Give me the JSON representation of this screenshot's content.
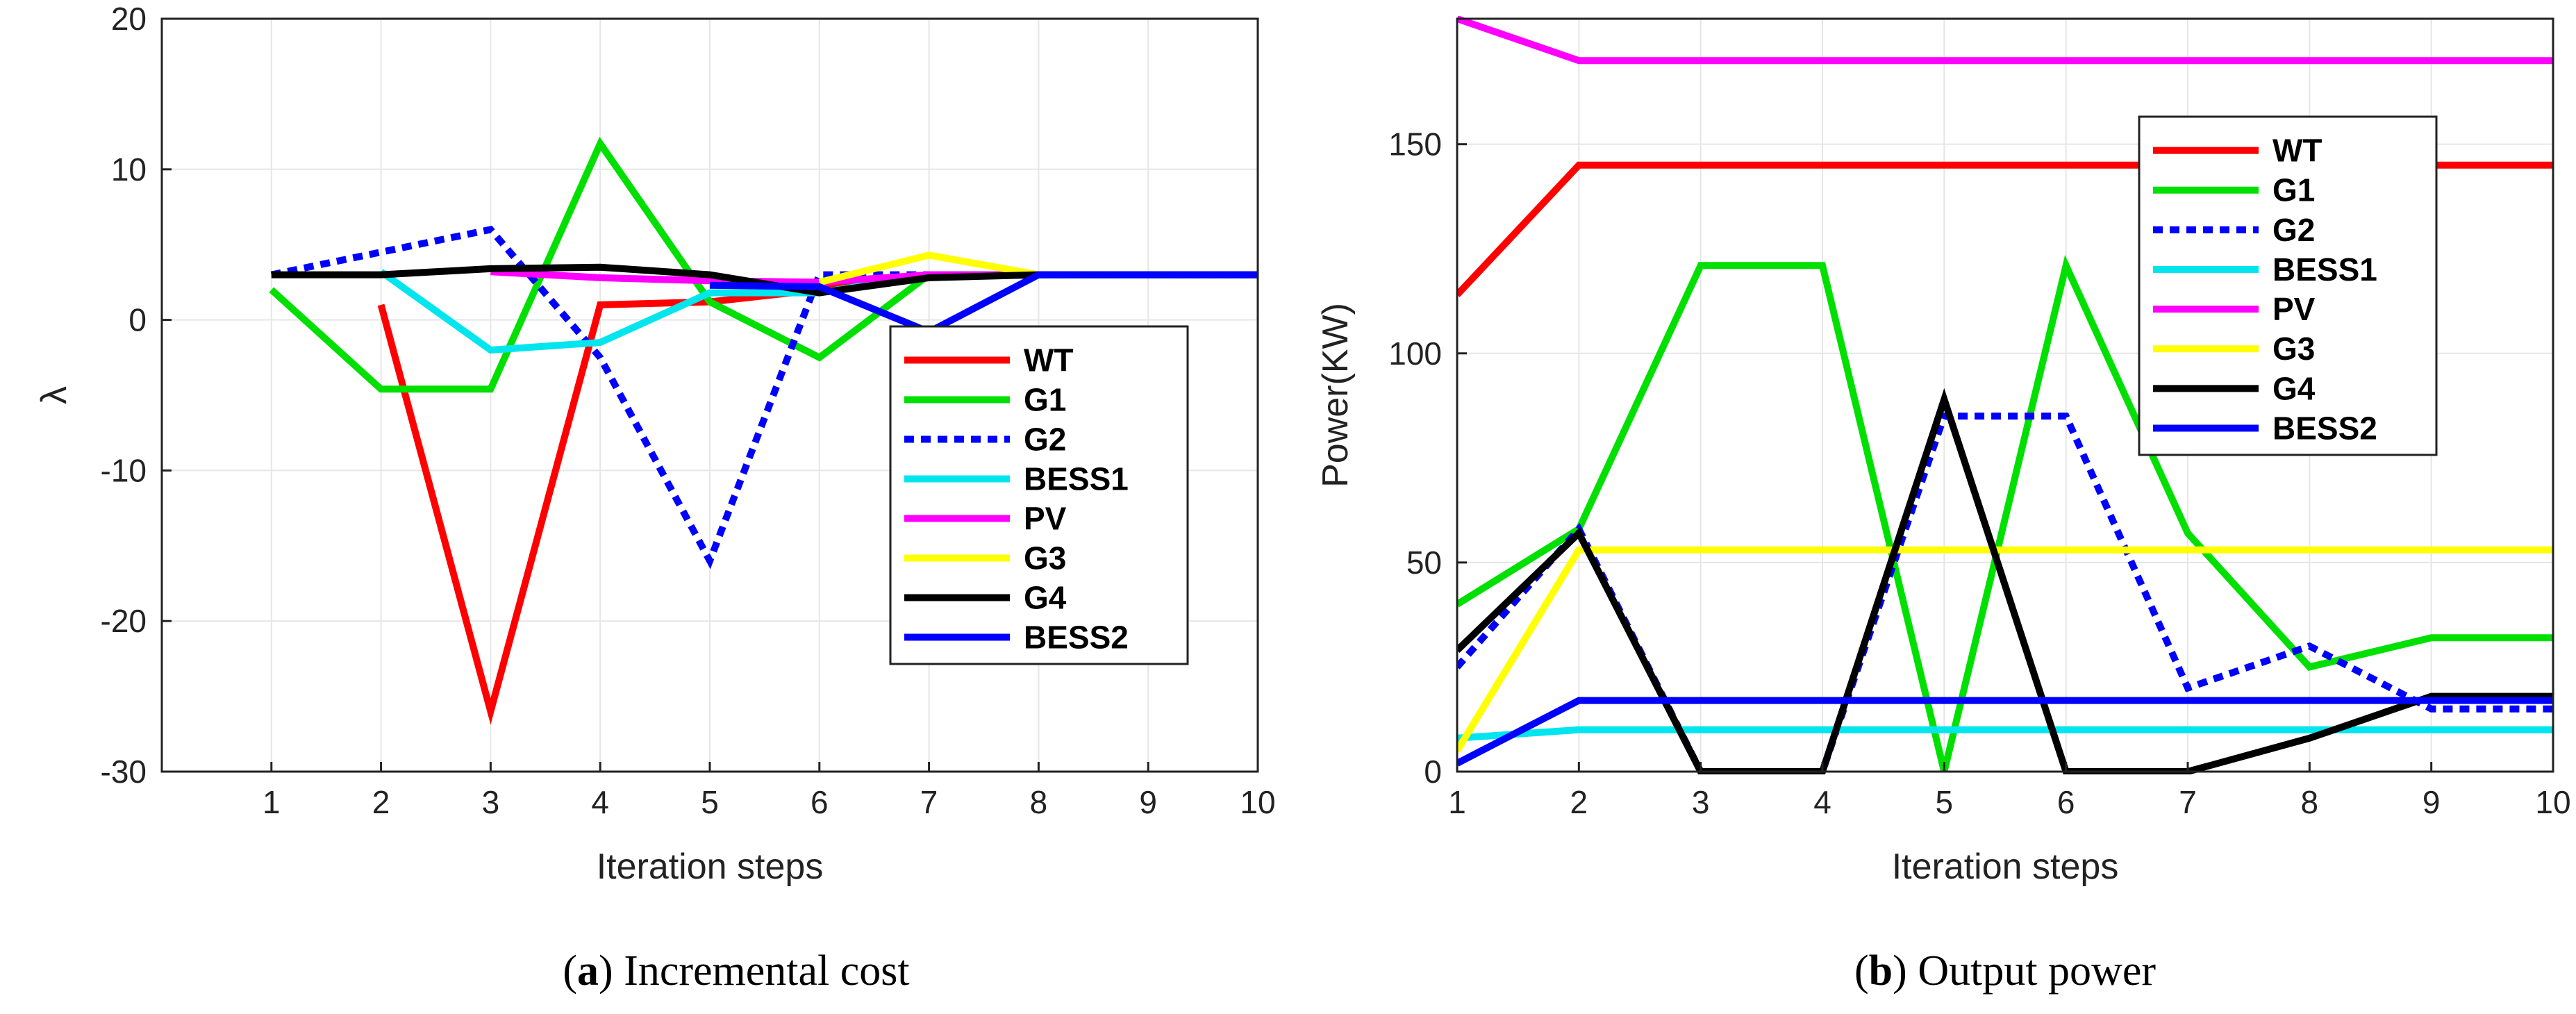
{
  "chart_data": [
    {
      "type": "line",
      "panel": "a",
      "caption_letter": "a",
      "caption_open": "(",
      "caption_close": ")",
      "caption_text": " Incremental cost",
      "xlabel": "Iteration steps",
      "ylabel": "λ",
      "xlim": [
        0,
        10
      ],
      "ylim": [
        -30,
        20
      ],
      "xticks": [
        1,
        2,
        3,
        4,
        5,
        6,
        7,
        8,
        9,
        10
      ],
      "yticks": [
        -30,
        -20,
        -10,
        0,
        10,
        20
      ],
      "legend": [
        "WT",
        "G1",
        "G2",
        "BESS1",
        "PV",
        "G3",
        "G4",
        "BESS2"
      ],
      "legend_position": "right",
      "series": [
        {
          "name": "WT",
          "color": "#ff0000",
          "dash": "solid",
          "x": [
            2,
            3,
            4,
            5,
            6,
            7,
            8,
            9,
            10
          ],
          "values": [
            1,
            -26,
            1,
            1.2,
            2,
            3,
            3,
            3,
            3
          ]
        },
        {
          "name": "G1",
          "color": "#00e000",
          "dash": "solid",
          "x": [
            1,
            2,
            3,
            4,
            5,
            6,
            7,
            8,
            9,
            10
          ],
          "values": [
            2,
            -4.6,
            -4.6,
            11.7,
            1.2,
            -2.5,
            3,
            3,
            3,
            3
          ]
        },
        {
          "name": "G2",
          "color": "#0000ff",
          "dash": "dotted",
          "x": [
            1,
            2,
            3,
            4,
            5,
            6,
            7,
            8,
            9,
            10
          ],
          "values": [
            3,
            4.5,
            6,
            -2.5,
            -16,
            3,
            3,
            3,
            3,
            3
          ]
        },
        {
          "name": "BESS1",
          "color": "#00e5ee",
          "dash": "solid",
          "x": [
            2,
            3,
            4,
            5,
            6,
            7,
            8,
            9,
            10
          ],
          "values": [
            3.2,
            -2,
            -1.5,
            1.8,
            1.8,
            3,
            3,
            3,
            3
          ]
        },
        {
          "name": "PV",
          "color": "#ff00ff",
          "dash": "solid",
          "x": [
            3,
            4,
            5,
            6,
            7,
            8,
            9,
            10
          ],
          "values": [
            3.2,
            2.8,
            2.6,
            2.5,
            3,
            3,
            3,
            3
          ]
        },
        {
          "name": "G3",
          "color": "#ffff00",
          "dash": "solid",
          "x": [
            6,
            7,
            8,
            9,
            10
          ],
          "values": [
            2.5,
            4.3,
            3,
            3,
            3
          ]
        },
        {
          "name": "G4",
          "color": "#000000",
          "dash": "solid",
          "x": [
            1,
            2,
            3,
            4,
            5,
            6,
            7,
            8,
            9,
            10
          ],
          "values": [
            3,
            3,
            3.4,
            3.5,
            3,
            1.8,
            2.8,
            3,
            3,
            3
          ]
        },
        {
          "name": "BESS2",
          "color": "#0000ff",
          "dash": "solid",
          "x": [
            5,
            6,
            7,
            8,
            9,
            10
          ],
          "values": [
            2.3,
            2.2,
            -0.8,
            3,
            3,
            3
          ]
        }
      ]
    },
    {
      "type": "line",
      "panel": "b",
      "caption_letter": "b",
      "caption_open": "(",
      "caption_close": ")",
      "caption_text": " Output power",
      "xlabel": "Iteration steps",
      "ylabel": "Power(KW)",
      "xlim": [
        1,
        10
      ],
      "ylim": [
        0,
        180
      ],
      "xticks": [
        1,
        2,
        3,
        4,
        5,
        6,
        7,
        8,
        9,
        10
      ],
      "yticks": [
        0,
        50,
        100,
        150
      ],
      "legend": [
        "WT",
        "G1",
        "G2",
        "BESS1",
        "PV",
        "G3",
        "G4",
        "BESS2"
      ],
      "legend_position": "top-right",
      "series": [
        {
          "name": "WT",
          "color": "#ff0000",
          "dash": "solid",
          "x": [
            1,
            2,
            3,
            4,
            5,
            6,
            7,
            8,
            9,
            10
          ],
          "values": [
            114,
            145,
            145,
            145,
            145,
            145,
            145,
            145,
            145,
            145
          ]
        },
        {
          "name": "G1",
          "color": "#00e000",
          "dash": "solid",
          "x": [
            1,
            2,
            3,
            4,
            5,
            6,
            7,
            8,
            9,
            10
          ],
          "values": [
            40,
            58,
            121,
            121,
            0,
            121,
            57,
            25,
            32,
            32
          ]
        },
        {
          "name": "G2",
          "color": "#0000ff",
          "dash": "dotted",
          "x": [
            1,
            2,
            3,
            4,
            5,
            6,
            7,
            8,
            9,
            10
          ],
          "values": [
            25,
            58,
            0,
            0,
            85,
            85,
            20,
            30,
            15,
            15
          ]
        },
        {
          "name": "BESS1",
          "color": "#00e5ee",
          "dash": "solid",
          "x": [
            1,
            2,
            3,
            4,
            5,
            6,
            7,
            8,
            9,
            10
          ],
          "values": [
            8,
            10,
            10,
            10,
            10,
            10,
            10,
            10,
            10,
            10
          ]
        },
        {
          "name": "PV",
          "color": "#ff00ff",
          "dash": "solid",
          "x": [
            1,
            2,
            3,
            4,
            5,
            6,
            7,
            8,
            9,
            10
          ],
          "values": [
            180,
            170,
            170,
            170,
            170,
            170,
            170,
            170,
            170,
            170
          ]
        },
        {
          "name": "G3",
          "color": "#ffff00",
          "dash": "solid",
          "x": [
            1,
            2,
            3,
            4,
            5,
            6,
            7,
            8,
            9,
            10
          ],
          "values": [
            5,
            53,
            53,
            53,
            53,
            53,
            53,
            53,
            53,
            53
          ]
        },
        {
          "name": "G4",
          "color": "#000000",
          "dash": "solid",
          "x": [
            1,
            2,
            3,
            4,
            5,
            6,
            7,
            8,
            9,
            10
          ],
          "values": [
            29,
            57,
            0,
            0,
            89,
            0,
            0,
            8,
            18,
            18
          ]
        },
        {
          "name": "BESS2",
          "color": "#0000ff",
          "dash": "solid",
          "x": [
            1,
            2,
            3,
            4,
            5,
            6,
            7,
            8,
            9,
            10
          ],
          "values": [
            2,
            17,
            17,
            17,
            17,
            17,
            17,
            17,
            17,
            17
          ]
        }
      ]
    }
  ]
}
